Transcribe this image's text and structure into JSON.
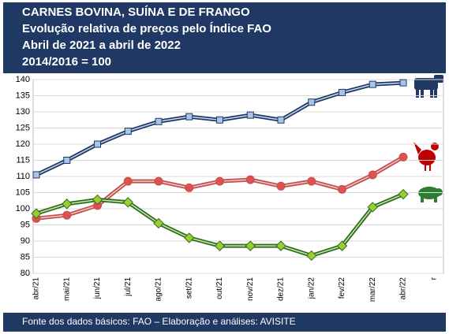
{
  "chart_data": {
    "type": "line",
    "title_lines": [
      "CARNES BOVINA, SUÍNA E DE FRANGO",
      "Evolução relativa de preços pelo Índice FAO",
      "Abril de 2021 a abril de 2022",
      "2014/2016 = 100"
    ],
    "source": "Fonte dos dados básicos: FAO – Elaboração e análises: AVISITE",
    "categories": [
      "abr/21",
      "mai/21",
      "jun/21",
      "jul/21",
      "ago/21",
      "set/21",
      "out/21",
      "nov/21",
      "dez/21",
      "jan/22",
      "fev/22",
      "mar/22",
      "abr/22",
      "r"
    ],
    "series": [
      {
        "color": "#1f3864",
        "values": [
          110.5,
          115,
          120,
          124,
          127,
          128.5,
          127.5,
          129,
          127.5,
          133,
          136,
          138.5,
          139,
          null
        ]
      },
      {
        "color": "#c0504d",
        "values": [
          97,
          98,
          101,
          108.5,
          108.5,
          106.5,
          108.5,
          109,
          107,
          108.5,
          106,
          110.5,
          116,
          null
        ]
      },
      {
        "color": "#2e6b1f",
        "values": [
          98.5,
          101.5,
          102.8,
          102,
          95.5,
          91,
          88.5,
          88.5,
          88.5,
          85.5,
          88.5,
          100.5,
          104.5,
          null
        ]
      }
    ],
    "ylim": [
      80,
      140
    ],
    "yticks": [
      80,
      85,
      90,
      95,
      100,
      105,
      110,
      115,
      120,
      125,
      130,
      135,
      140
    ],
    "grid": true
  }
}
